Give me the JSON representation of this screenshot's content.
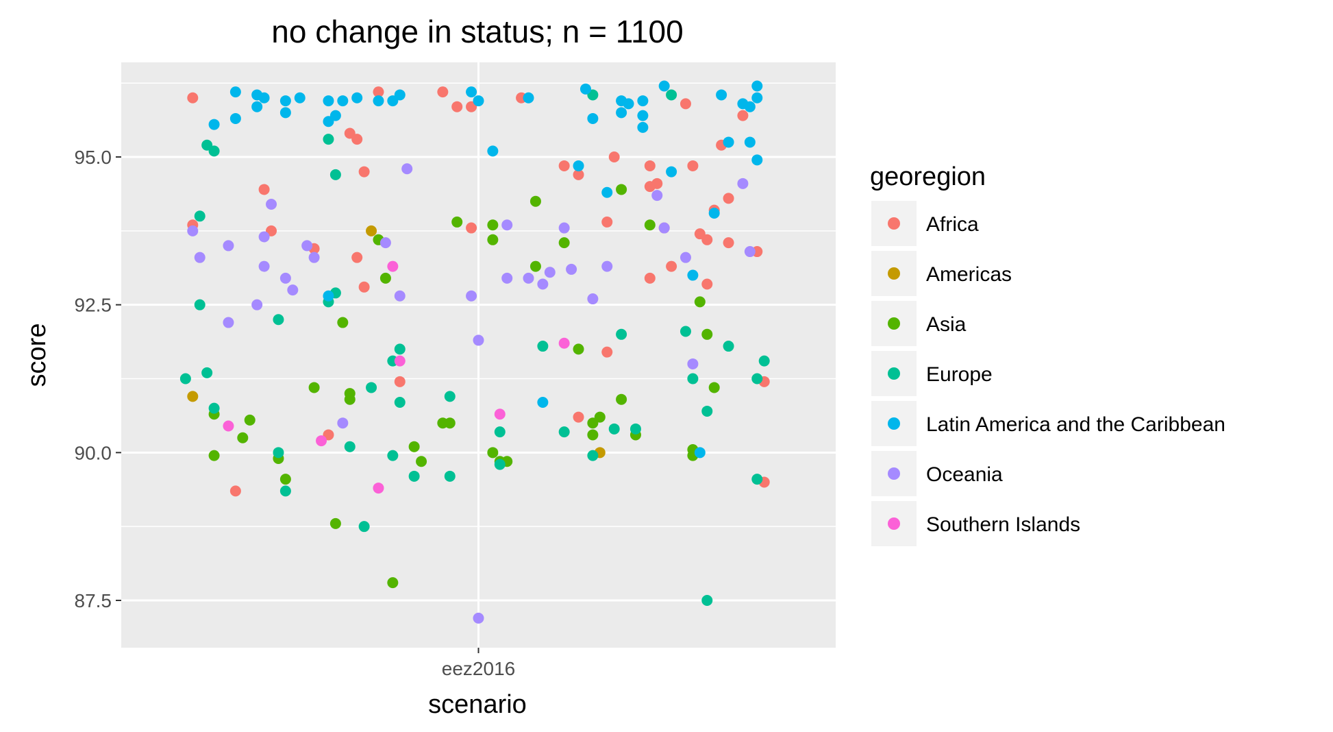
{
  "chart_data": {
    "type": "scatter",
    "title": "no change in  status; n = 1100",
    "xlabel": "scenario",
    "ylabel": "score",
    "categories": [
      "eez2016"
    ],
    "ylim": [
      86.7,
      96.6
    ],
    "xlim": [
      -0.5,
      0.5
    ],
    "yticks": [
      "87.5",
      "90.0",
      "92.5",
      "95.0"
    ],
    "grid": true,
    "legend": {
      "title": "georegion",
      "position": "right"
    },
    "series": [
      {
        "name": "Africa",
        "color": "#F8766D",
        "points": [
          [
            -0.4,
            96.0
          ],
          [
            -0.4,
            93.85
          ],
          [
            -0.34,
            89.35
          ],
          [
            -0.3,
            94.45
          ],
          [
            -0.29,
            93.75
          ],
          [
            -0.23,
            93.45
          ],
          [
            -0.21,
            90.3
          ],
          [
            -0.18,
            95.4
          ],
          [
            -0.17,
            95.3
          ],
          [
            -0.17,
            93.3
          ],
          [
            -0.16,
            94.75
          ],
          [
            -0.16,
            92.8
          ],
          [
            -0.14,
            96.1
          ],
          [
            -0.11,
            91.2
          ],
          [
            -0.05,
            96.1
          ],
          [
            -0.03,
            95.85
          ],
          [
            -0.01,
            95.85
          ],
          [
            -0.01,
            93.8
          ],
          [
            0.06,
            96.0
          ],
          [
            0.12,
            94.85
          ],
          [
            0.14,
            94.7
          ],
          [
            0.14,
            90.6
          ],
          [
            0.18,
            93.9
          ],
          [
            0.18,
            91.7
          ],
          [
            0.19,
            95.0
          ],
          [
            0.24,
            94.85
          ],
          [
            0.24,
            94.5
          ],
          [
            0.24,
            92.95
          ],
          [
            0.25,
            94.55
          ],
          [
            0.26,
            93.8
          ],
          [
            0.27,
            93.15
          ],
          [
            0.29,
            95.9
          ],
          [
            0.3,
            94.85
          ],
          [
            0.31,
            93.7
          ],
          [
            0.32,
            93.6
          ],
          [
            0.32,
            92.85
          ],
          [
            0.33,
            94.1
          ],
          [
            0.34,
            95.2
          ],
          [
            0.35,
            94.3
          ],
          [
            0.35,
            93.55
          ],
          [
            0.37,
            95.7
          ],
          [
            0.39,
            93.4
          ],
          [
            0.4,
            91.2
          ],
          [
            0.4,
            89.5
          ]
        ]
      },
      {
        "name": "Americas",
        "color": "#C49A00",
        "points": [
          [
            -0.4,
            90.95
          ],
          [
            -0.15,
            93.75
          ],
          [
            0.17,
            90.0
          ]
        ]
      },
      {
        "name": "Asia",
        "color": "#53B400",
        "points": [
          [
            -0.37,
            90.65
          ],
          [
            -0.37,
            89.95
          ],
          [
            -0.33,
            90.25
          ],
          [
            -0.32,
            90.55
          ],
          [
            -0.28,
            89.9
          ],
          [
            -0.27,
            89.55
          ],
          [
            -0.23,
            91.1
          ],
          [
            -0.2,
            88.8
          ],
          [
            -0.19,
            92.2
          ],
          [
            -0.18,
            91.0
          ],
          [
            -0.18,
            90.9
          ],
          [
            -0.14,
            93.6
          ],
          [
            -0.13,
            92.95
          ],
          [
            -0.12,
            87.8
          ],
          [
            -0.09,
            90.1
          ],
          [
            -0.08,
            89.85
          ],
          [
            -0.05,
            90.5
          ],
          [
            -0.04,
            90.5
          ],
          [
            -0.03,
            93.9
          ],
          [
            0.02,
            93.85
          ],
          [
            0.02,
            93.6
          ],
          [
            0.02,
            90.0
          ],
          [
            0.03,
            89.85
          ],
          [
            0.04,
            89.85
          ],
          [
            0.08,
            94.25
          ],
          [
            0.08,
            93.15
          ],
          [
            0.12,
            93.55
          ],
          [
            0.14,
            91.75
          ],
          [
            0.16,
            90.5
          ],
          [
            0.16,
            90.3
          ],
          [
            0.17,
            90.6
          ],
          [
            0.2,
            94.45
          ],
          [
            0.2,
            90.9
          ],
          [
            0.22,
            90.3
          ],
          [
            0.24,
            93.85
          ],
          [
            0.31,
            92.55
          ],
          [
            0.3,
            90.05
          ],
          [
            0.3,
            89.95
          ],
          [
            0.32,
            92.0
          ],
          [
            0.33,
            91.1
          ]
        ]
      },
      {
        "name": "Europe",
        "color": "#00C094",
        "points": [
          [
            -0.41,
            91.25
          ],
          [
            -0.39,
            94.0
          ],
          [
            -0.39,
            92.5
          ],
          [
            -0.38,
            95.2
          ],
          [
            -0.38,
            91.35
          ],
          [
            -0.37,
            95.1
          ],
          [
            -0.37,
            90.75
          ],
          [
            -0.28,
            92.25
          ],
          [
            -0.28,
            90.0
          ],
          [
            -0.27,
            89.35
          ],
          [
            -0.21,
            92.55
          ],
          [
            -0.21,
            95.3
          ],
          [
            -0.2,
            94.7
          ],
          [
            -0.2,
            92.7
          ],
          [
            -0.18,
            90.1
          ],
          [
            -0.16,
            88.75
          ],
          [
            -0.15,
            91.1
          ],
          [
            -0.12,
            91.55
          ],
          [
            -0.12,
            89.95
          ],
          [
            -0.11,
            91.75
          ],
          [
            -0.11,
            90.85
          ],
          [
            -0.09,
            89.6
          ],
          [
            -0.04,
            89.6
          ],
          [
            -0.04,
            90.95
          ],
          [
            0.03,
            90.35
          ],
          [
            0.03,
            89.8
          ],
          [
            0.09,
            91.8
          ],
          [
            0.12,
            90.35
          ],
          [
            0.16,
            96.05
          ],
          [
            0.16,
            89.95
          ],
          [
            0.19,
            90.4
          ],
          [
            0.2,
            92.0
          ],
          [
            0.22,
            90.4
          ],
          [
            0.27,
            96.05
          ],
          [
            0.29,
            92.05
          ],
          [
            0.3,
            91.25
          ],
          [
            0.32,
            90.7
          ],
          [
            0.32,
            87.5
          ],
          [
            0.35,
            91.8
          ],
          [
            0.39,
            91.25
          ],
          [
            0.39,
            89.55
          ],
          [
            0.4,
            91.55
          ]
        ]
      },
      {
        "name": "Latin America and the Caribbean",
        "color": "#00B6EB",
        "points": [
          [
            -0.37,
            95.55
          ],
          [
            -0.34,
            95.65
          ],
          [
            -0.34,
            96.1
          ],
          [
            -0.31,
            96.05
          ],
          [
            -0.31,
            95.85
          ],
          [
            -0.3,
            96.0
          ],
          [
            -0.27,
            95.95
          ],
          [
            -0.27,
            95.75
          ],
          [
            -0.25,
            96.0
          ],
          [
            -0.21,
            95.95
          ],
          [
            -0.21,
            95.6
          ],
          [
            -0.21,
            92.65
          ],
          [
            -0.2,
            95.7
          ],
          [
            -0.19,
            95.95
          ],
          [
            -0.17,
            96.0
          ],
          [
            -0.14,
            95.95
          ],
          [
            -0.12,
            95.95
          ],
          [
            -0.11,
            96.05
          ],
          [
            -0.01,
            96.1
          ],
          [
            0.0,
            95.95
          ],
          [
            0.02,
            95.1
          ],
          [
            0.07,
            96.0
          ],
          [
            0.09,
            90.85
          ],
          [
            0.14,
            94.85
          ],
          [
            0.15,
            96.15
          ],
          [
            0.16,
            95.65
          ],
          [
            0.18,
            94.4
          ],
          [
            0.2,
            95.95
          ],
          [
            0.2,
            95.75
          ],
          [
            0.21,
            95.9
          ],
          [
            0.23,
            95.95
          ],
          [
            0.23,
            95.7
          ],
          [
            0.23,
            95.5
          ],
          [
            0.26,
            96.2
          ],
          [
            0.27,
            94.75
          ],
          [
            0.3,
            93.0
          ],
          [
            0.31,
            90.0
          ],
          [
            0.33,
            94.05
          ],
          [
            0.34,
            96.05
          ],
          [
            0.35,
            95.25
          ],
          [
            0.37,
            95.9
          ],
          [
            0.38,
            95.85
          ],
          [
            0.38,
            95.25
          ],
          [
            0.39,
            96.2
          ],
          [
            0.39,
            96.0
          ],
          [
            0.39,
            94.95
          ]
        ]
      },
      {
        "name": "Oceania",
        "color": "#A58AFF",
        "points": [
          [
            -0.4,
            93.75
          ],
          [
            -0.39,
            93.3
          ],
          [
            -0.35,
            93.5
          ],
          [
            -0.35,
            92.2
          ],
          [
            -0.31,
            92.5
          ],
          [
            -0.3,
            93.65
          ],
          [
            -0.3,
            93.15
          ],
          [
            -0.29,
            94.2
          ],
          [
            -0.27,
            92.95
          ],
          [
            -0.26,
            92.75
          ],
          [
            -0.24,
            93.5
          ],
          [
            -0.23,
            93.3
          ],
          [
            -0.19,
            90.5
          ],
          [
            -0.13,
            93.55
          ],
          [
            -0.11,
            92.65
          ],
          [
            -0.1,
            94.8
          ],
          [
            -0.01,
            92.65
          ],
          [
            0.0,
            91.9
          ],
          [
            0.0,
            87.2
          ],
          [
            0.04,
            93.85
          ],
          [
            0.04,
            92.95
          ],
          [
            0.07,
            92.95
          ],
          [
            0.09,
            92.85
          ],
          [
            0.1,
            93.05
          ],
          [
            0.12,
            93.8
          ],
          [
            0.13,
            93.1
          ],
          [
            0.16,
            92.6
          ],
          [
            0.18,
            93.15
          ],
          [
            0.25,
            94.35
          ],
          [
            0.26,
            93.8
          ],
          [
            0.29,
            93.3
          ],
          [
            0.3,
            91.5
          ],
          [
            0.37,
            94.55
          ],
          [
            0.38,
            93.4
          ]
        ]
      },
      {
        "name": "Southern Islands",
        "color": "#FB61D7",
        "points": [
          [
            -0.35,
            90.45
          ],
          [
            -0.22,
            90.2
          ],
          [
            -0.14,
            89.4
          ],
          [
            -0.12,
            93.15
          ],
          [
            -0.11,
            91.55
          ],
          [
            0.03,
            90.65
          ],
          [
            0.12,
            91.85
          ]
        ]
      }
    ]
  }
}
